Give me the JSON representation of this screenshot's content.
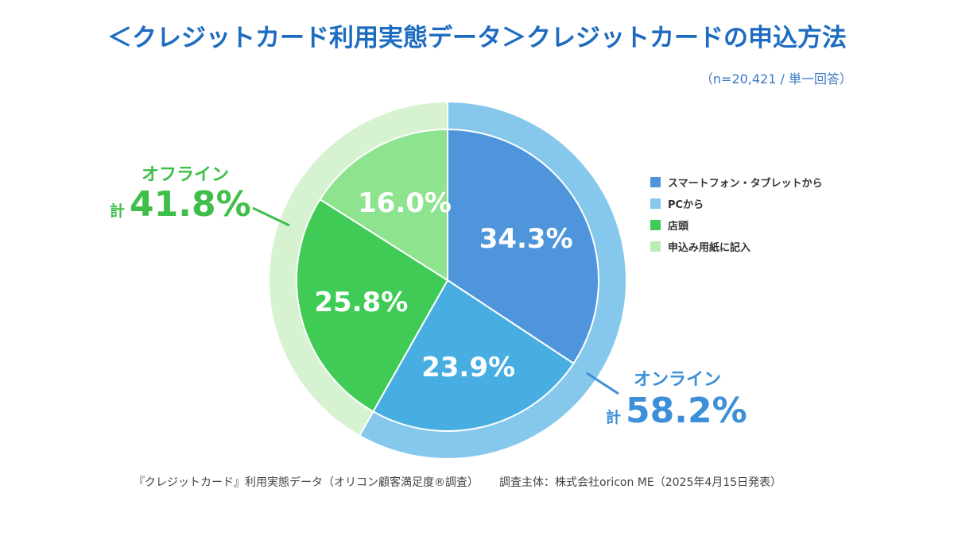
{
  "title": "＜クレジットカード利用実態データ＞クレジットカードの申込方法",
  "subtitle": "（n=20,421 / 単一回答）",
  "chart_data": {
    "type": "pie",
    "categories": [
      "スマートフォン・タブレットから",
      "PCから",
      "店頭",
      "申込み用紙に記入"
    ],
    "values": [
      34.3,
      23.9,
      25.8,
      16.0
    ],
    "value_labels": [
      "34.3%",
      "23.9%",
      "25.8%",
      "16.0%"
    ],
    "colors": [
      "#4f95dc",
      "#48aee2",
      "#3fcb55",
      "#8ee38e"
    ],
    "legend_placement": "right",
    "groups": [
      {
        "name": "オンライン",
        "total_prefix": "計",
        "total": "58.2%",
        "members": [
          0,
          1
        ],
        "ring_color": "#85c8ec"
      },
      {
        "name": "オフライン",
        "total_prefix": "計",
        "total": "41.8%",
        "members": [
          2,
          3
        ],
        "ring_color": "#d6f2d0"
      }
    ]
  },
  "legend": [
    "スマートフォン・タブレットから",
    "PCから",
    "店頭",
    "申込み用紙に記入"
  ],
  "footer": {
    "source": "『クレジットカード』利用実態データ（オリコン顧客満足度®調査）",
    "surveyor": "調査主体：株式会社oricon ME（2025年4月15日発表）"
  }
}
